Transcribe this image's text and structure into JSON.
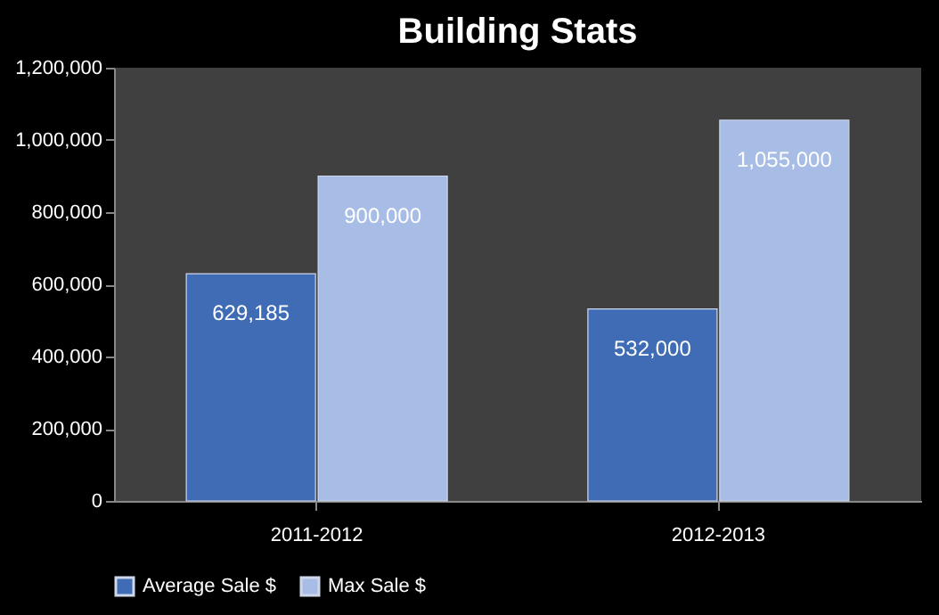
{
  "chart_data": {
    "type": "bar",
    "title": "Building Stats",
    "categories": [
      "2011-2012",
      "2012-2013"
    ],
    "series": [
      {
        "name": "Average Sale $",
        "color": "#3f6cb4",
        "values": [
          629185,
          532000
        ],
        "value_labels": [
          "629,185",
          "532,000"
        ]
      },
      {
        "name": "Max Sale $",
        "color": "#a8bde6",
        "values": [
          900000,
          1055000
        ],
        "value_labels": [
          "900,000",
          "1,055,000"
        ]
      }
    ],
    "ylim": [
      0,
      1200000
    ],
    "yticks": [
      0,
      {
        "value": 200000,
        "label": "200,000"
      },
      {
        "value": 400000,
        "label": "400,000"
      },
      {
        "value": 600000,
        "label": "600,000"
      },
      {
        "value": 800000,
        "label": "800,000"
      },
      {
        "value": 1000000,
        "label": "1,000,000"
      },
      {
        "value": 1200000,
        "label": "1,200,000"
      }
    ],
    "legend": "bottom"
  }
}
